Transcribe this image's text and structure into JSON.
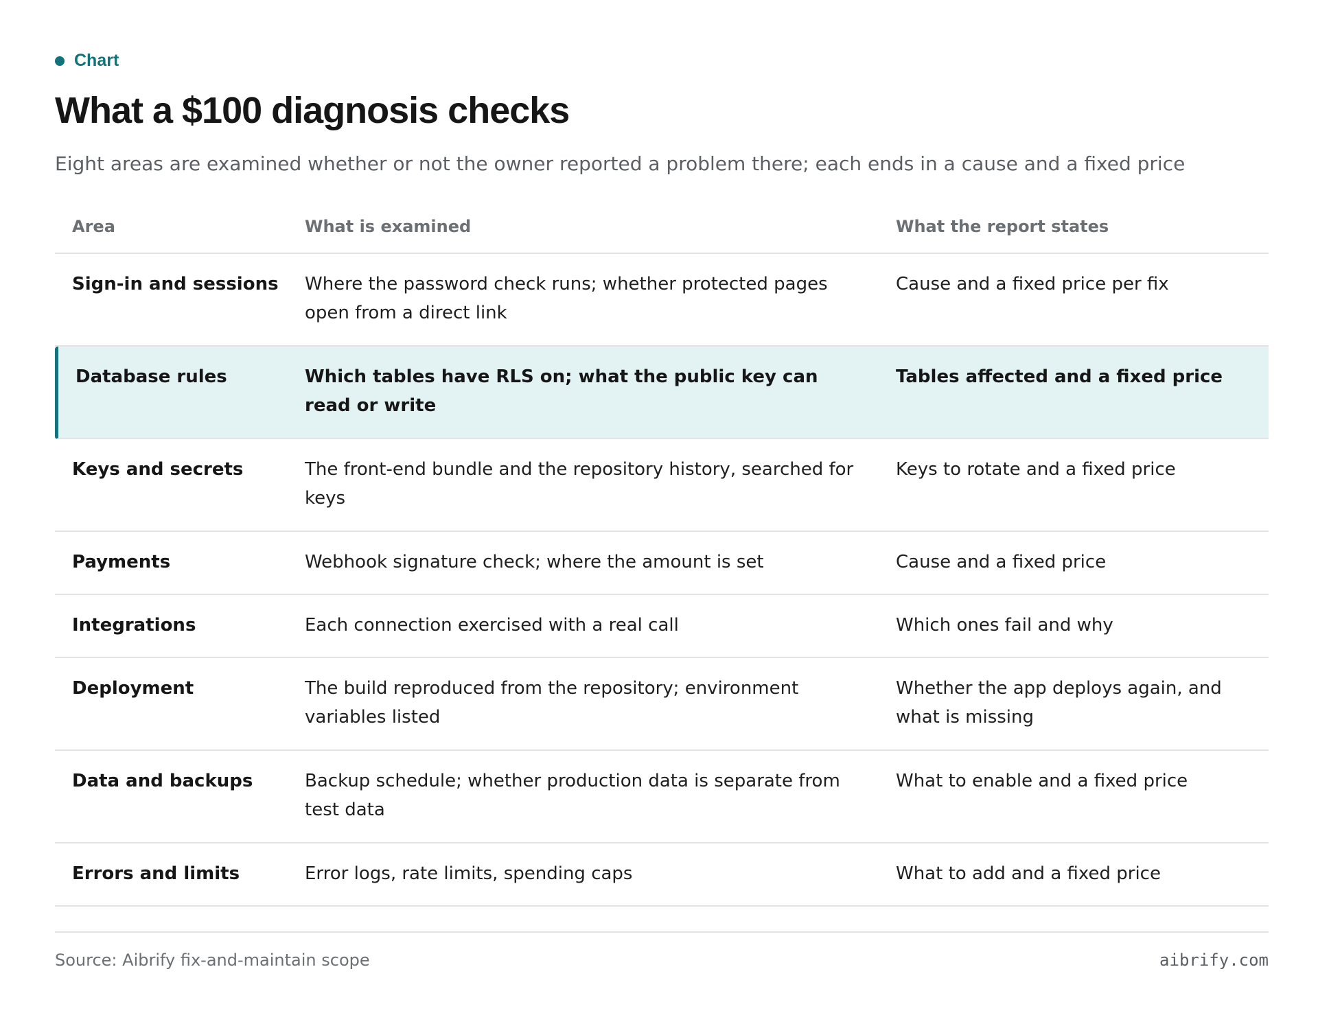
{
  "eyebrow": "Chart",
  "title": "What a $100 diagnosis checks",
  "subtitle": "Eight areas are examined whether or not the owner reported a problem there; each ends in a cause and a fixed price",
  "colors": {
    "accent": "#12737c",
    "highlight_bg": "#e3f2f3",
    "rule": "#e1e3e5"
  },
  "chart_data": {
    "type": "table",
    "columns": [
      "Area",
      "What is examined",
      "What the report states"
    ],
    "highlighted_row": "Database rules",
    "rows": [
      {
        "area": "Sign-in and sessions",
        "examined": "Where the password check runs; whether protected pages open from a direct link",
        "report": "Cause and a fixed price per fix"
      },
      {
        "area": "Database rules",
        "examined": "Which tables have RLS on; what the public key can read or write",
        "report": "Tables affected and a fixed price"
      },
      {
        "area": "Keys and secrets",
        "examined": "The front-end bundle and the repository history, searched for keys",
        "report": "Keys to rotate and a fixed price"
      },
      {
        "area": "Payments",
        "examined": "Webhook signature check; where the amount is set",
        "report": "Cause and a fixed price"
      },
      {
        "area": "Integrations",
        "examined": "Each connection exercised with a real call",
        "report": "Which ones fail and why"
      },
      {
        "area": "Deployment",
        "examined": "The build reproduced from the repository; environment variables listed",
        "report": "Whether the app deploys again, and what is missing"
      },
      {
        "area": "Data and backups",
        "examined": "Backup schedule; whether production data is separate from test data",
        "report": "What to enable and a fixed price"
      },
      {
        "area": "Errors and limits",
        "examined": "Error logs, rate limits, spending caps",
        "report": "What to add and a fixed price"
      }
    ]
  },
  "footer": {
    "source": "Source: Aibrify fix-and-maintain scope",
    "brand": "aibrify.com"
  }
}
